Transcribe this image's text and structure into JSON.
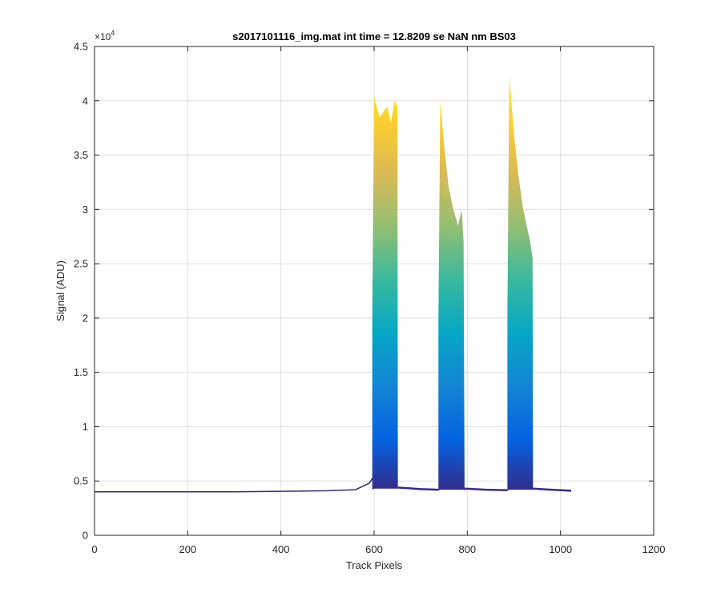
{
  "chart_data": {
    "type": "area",
    "title": "s2017101116_img.mat int time = 12.8209 se  NaN nm BS03",
    "xlabel": "Track Pixels",
    "ylabel": "Signal (ADU)",
    "xlim": [
      0,
      1200
    ],
    "ylim": [
      0,
      45000
    ],
    "xticks": [
      0,
      200,
      400,
      600,
      800,
      1000,
      1200
    ],
    "yticks": [
      0,
      5000,
      10000,
      15000,
      20000,
      25000,
      30000,
      35000,
      40000,
      45000
    ],
    "ytick_labels": [
      "0",
      "0.5",
      "1",
      "1.5",
      "2",
      "2.5",
      "3",
      "3.5",
      "4",
      "4.5"
    ],
    "y_exponent": {
      "base": "×10",
      "power": "4"
    },
    "grid": true,
    "colormap": [
      "#352a87",
      "#0363e1",
      "#1485d4",
      "#06a7c6",
      "#38b99e",
      "#92bf73",
      "#d9ba56",
      "#fcce2e",
      "#f9fb0e"
    ],
    "baseline_points": {
      "x": [
        0,
        100,
        200,
        300,
        400,
        500,
        560,
        590,
        600
      ],
      "y": [
        4000,
        4000,
        4000,
        4000,
        4050,
        4100,
        4200,
        4800,
        5500
      ]
    },
    "peaks": [
      {
        "x": [
          596,
          600,
          605,
          612,
          620,
          628,
          636,
          644,
          650,
          651
        ],
        "y_max": [
          20000,
          40500,
          39500,
          38500,
          39000,
          39500,
          38000,
          40000,
          39500,
          5000
        ],
        "y_min": [
          4200,
          4300,
          4300,
          4300,
          4300,
          4300,
          4300,
          4300,
          4300,
          4200
        ]
      },
      {
        "x": [
          738,
          742,
          750,
          760,
          770,
          780,
          788,
          792,
          794
        ],
        "y_max": [
          20000,
          40000,
          36000,
          32000,
          30000,
          28500,
          30000,
          27000,
          5000
        ],
        "y_min": [
          4100,
          4200,
          4200,
          4200,
          4200,
          4200,
          4200,
          4200,
          4100
        ]
      },
      {
        "x": [
          886,
          890,
          900,
          910,
          920,
          930,
          935,
          940,
          941
        ],
        "y_max": [
          20000,
          42500,
          37000,
          33000,
          30000,
          28000,
          27000,
          25500,
          5000
        ],
        "y_min": [
          4100,
          4200,
          4200,
          4200,
          4200,
          4200,
          4200,
          4200,
          4100
        ]
      }
    ],
    "gap_points": {
      "segments": [
        {
          "x": [
            651,
            700,
            738
          ],
          "y": [
            4400,
            4250,
            4200
          ]
        },
        {
          "x": [
            794,
            840,
            886
          ],
          "y": [
            4300,
            4200,
            4150
          ]
        },
        {
          "x": [
            941,
            980,
            1023
          ],
          "y": [
            4300,
            4200,
            4100
          ]
        }
      ]
    }
  }
}
